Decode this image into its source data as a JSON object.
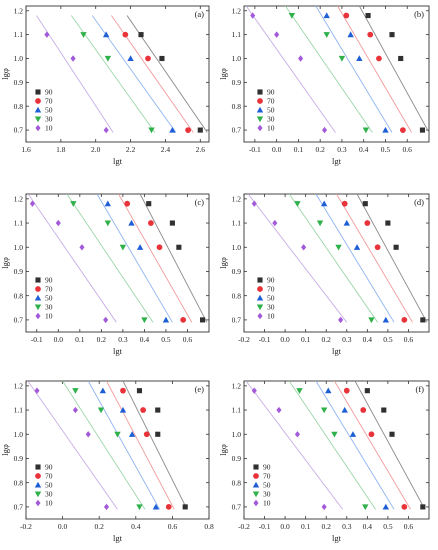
{
  "figure": {
    "colors": {
      "90": "#303030",
      "70": "#e8333a",
      "50": "#1f5fd6",
      "30": "#2eb04a",
      "10": "#a35ad8"
    },
    "line_colors": {
      "90": "#8a8a8a",
      "70": "#f29a9a",
      "50": "#8fb4f0",
      "30": "#9cd6a8",
      "10": "#c8aee6"
    }
  },
  "chart_data": [
    {
      "panel": "(a)",
      "type": "scatter",
      "xlabel": "lgt",
      "ylabel": "lgφ",
      "xlim": [
        1.6,
        2.65
      ],
      "ylim": [
        0.65,
        1.22
      ],
      "xticks": [
        1.6,
        1.8,
        2.0,
        2.2,
        2.4,
        2.6
      ],
      "xticklabels": [
        "1.6",
        "1.8",
        "2.0",
        "2.2",
        "2.4",
        "2.6"
      ],
      "yticks": [
        0.7,
        0.8,
        0.9,
        1.0,
        1.1,
        1.2
      ],
      "yticklabels": [
        "0.7",
        "0.8",
        "0.9",
        "1.0",
        "1.1",
        "1.2"
      ],
      "legend": "left",
      "series": [
        {
          "name": "90",
          "marker": "square",
          "x": [
            2.26,
            2.38,
            2.6
          ],
          "y": [
            1.1,
            1.0,
            0.7
          ],
          "fit": [
            [
              2.18,
              1.18
            ],
            [
              2.64,
              0.69
            ]
          ]
        },
        {
          "name": "70",
          "marker": "circle",
          "x": [
            2.17,
            2.3,
            2.53
          ],
          "y": [
            1.1,
            1.0,
            0.7
          ],
          "fit": [
            [
              2.09,
              1.18
            ],
            [
              2.56,
              0.69
            ]
          ]
        },
        {
          "name": "50",
          "marker": "triangle",
          "x": [
            2.06,
            2.2,
            2.44
          ],
          "y": [
            1.1,
            1.0,
            0.7
          ],
          "fit": [
            [
              1.98,
              1.18
            ],
            [
              2.46,
              0.69
            ]
          ]
        },
        {
          "name": "30",
          "marker": "triangle-down",
          "x": [
            1.93,
            2.07,
            2.32
          ],
          "y": [
            1.1,
            1.0,
            0.7
          ],
          "fit": [
            [
              1.86,
              1.18
            ],
            [
              2.34,
              0.69
            ]
          ]
        },
        {
          "name": "10",
          "marker": "diamond",
          "x": [
            1.72,
            1.87,
            2.06
          ],
          "y": [
            1.1,
            1.0,
            0.7
          ],
          "fit": [
            [
              1.66,
              1.18
            ],
            [
              2.1,
              0.69
            ]
          ]
        }
      ]
    },
    {
      "panel": "(b)",
      "type": "scatter",
      "xlabel": "lgt",
      "ylabel": "lgφ",
      "xlim": [
        -0.15,
        0.7
      ],
      "ylim": [
        0.65,
        1.22
      ],
      "xticks": [
        -0.1,
        0.0,
        0.1,
        0.2,
        0.3,
        0.4,
        0.5,
        0.6
      ],
      "xticklabels": [
        "-0.1",
        "0.0",
        "0.1",
        "0.2",
        "0.3",
        "0.4",
        "0.5",
        "0.6"
      ],
      "yticks": [
        0.7,
        0.8,
        0.9,
        1.0,
        1.1,
        1.2
      ],
      "yticklabels": [
        "0.7",
        "0.8",
        "0.9",
        "1.0",
        "1.1",
        "1.2"
      ],
      "legend": "right",
      "series": [
        {
          "name": "90",
          "marker": "square",
          "x": [
            0.42,
            0.53,
            0.57,
            0.67
          ],
          "y": [
            1.18,
            1.1,
            1.0,
            0.7
          ],
          "fit": [
            [
              0.38,
              1.22
            ],
            [
              0.7,
              0.69
            ]
          ]
        },
        {
          "name": "70",
          "marker": "circle",
          "x": [
            0.32,
            0.43,
            0.47,
            0.58
          ],
          "y": [
            1.18,
            1.1,
            1.0,
            0.7
          ],
          "fit": [
            [
              0.28,
              1.22
            ],
            [
              0.62,
              0.69
            ]
          ]
        },
        {
          "name": "50",
          "marker": "triangle",
          "x": [
            0.23,
            0.34,
            0.38,
            0.5
          ],
          "y": [
            1.18,
            1.1,
            1.0,
            0.7
          ],
          "fit": [
            [
              0.18,
              1.22
            ],
            [
              0.53,
              0.69
            ]
          ]
        },
        {
          "name": "30",
          "marker": "triangle-down",
          "x": [
            0.07,
            0.23,
            0.3,
            0.41
          ],
          "y": [
            1.18,
            1.1,
            1.0,
            0.7
          ],
          "fit": [
            [
              0.04,
              1.22
            ],
            [
              0.44,
              0.69
            ]
          ]
        },
        {
          "name": "10",
          "marker": "diamond",
          "x": [
            -0.11,
            0.0,
            0.11,
            0.22
          ],
          "y": [
            1.18,
            1.1,
            1.0,
            0.7
          ],
          "fit": [
            [
              -0.14,
              1.22
            ],
            [
              0.27,
              0.69
            ]
          ]
        }
      ]
    },
    {
      "panel": "(c)",
      "type": "scatter",
      "xlabel": "lgt",
      "ylabel": "lgφ",
      "xlim": [
        -0.15,
        0.7
      ],
      "ylim": [
        0.65,
        1.22
      ],
      "xticks": [
        -0.1,
        0.0,
        0.1,
        0.2,
        0.3,
        0.4,
        0.5,
        0.6
      ],
      "xticklabels": [
        "-0.1",
        "0.0",
        "0.1",
        "0.2",
        "0.3",
        "0.4",
        "0.5",
        "0.6"
      ],
      "yticks": [
        0.7,
        0.8,
        0.9,
        1.0,
        1.1,
        1.2
      ],
      "yticklabels": [
        "0.7",
        "0.8",
        "0.9",
        "1.0",
        "1.1",
        "1.2"
      ],
      "legend": "left",
      "series": [
        {
          "name": "90",
          "marker": "square",
          "x": [
            0.42,
            0.53,
            0.56,
            0.67
          ],
          "y": [
            1.18,
            1.1,
            1.0,
            0.7
          ],
          "fit": [
            [
              0.38,
              1.22
            ],
            [
              0.69,
              0.69
            ]
          ]
        },
        {
          "name": "70",
          "marker": "circle",
          "x": [
            0.32,
            0.43,
            0.47,
            0.58
          ],
          "y": [
            1.18,
            1.1,
            1.0,
            0.7
          ],
          "fit": [
            [
              0.28,
              1.22
            ],
            [
              0.62,
              0.69
            ]
          ]
        },
        {
          "name": "50",
          "marker": "triangle",
          "x": [
            0.23,
            0.34,
            0.38,
            0.5
          ],
          "y": [
            1.18,
            1.1,
            1.0,
            0.7
          ],
          "fit": [
            [
              0.18,
              1.22
            ],
            [
              0.53,
              0.69
            ]
          ]
        },
        {
          "name": "30",
          "marker": "triangle-down",
          "x": [
            0.07,
            0.23,
            0.3,
            0.4
          ],
          "y": [
            1.18,
            1.1,
            1.0,
            0.7
          ],
          "fit": [
            [
              0.04,
              1.22
            ],
            [
              0.44,
              0.69
            ]
          ]
        },
        {
          "name": "10",
          "marker": "diamond",
          "x": [
            -0.12,
            0.0,
            0.11,
            0.22
          ],
          "y": [
            1.18,
            1.1,
            1.0,
            0.7
          ],
          "fit": [
            [
              -0.14,
              1.22
            ],
            [
              0.27,
              0.69
            ]
          ]
        }
      ]
    },
    {
      "panel": "(d)",
      "type": "scatter",
      "xlabel": "lgt",
      "ylabel": "lgφ",
      "xlim": [
        -0.2,
        0.7
      ],
      "ylim": [
        0.65,
        1.22
      ],
      "xticks": [
        -0.2,
        -0.1,
        0.0,
        0.1,
        0.2,
        0.3,
        0.4,
        0.5,
        0.6
      ],
      "xticklabels": [
        "-0.2",
        "-0.1",
        "0.0",
        "0.1",
        "0.2",
        "0.3",
        "0.4",
        "0.5",
        "0.6"
      ],
      "yticks": [
        0.7,
        0.8,
        0.9,
        1.0,
        1.1,
        1.2
      ],
      "yticklabels": [
        "0.7",
        "0.8",
        "0.9",
        "1.0",
        "1.1",
        "1.2"
      ],
      "legend": "right",
      "series": [
        {
          "name": "90",
          "marker": "square",
          "x": [
            0.39,
            0.5,
            0.54,
            0.67
          ],
          "y": [
            1.18,
            1.1,
            1.0,
            0.7
          ],
          "fit": [
            [
              0.35,
              1.22
            ],
            [
              0.69,
              0.69
            ]
          ]
        },
        {
          "name": "70",
          "marker": "circle",
          "x": [
            0.29,
            0.4,
            0.45,
            0.58
          ],
          "y": [
            1.18,
            1.1,
            1.0,
            0.7
          ],
          "fit": [
            [
              0.25,
              1.22
            ],
            [
              0.62,
              0.69
            ]
          ]
        },
        {
          "name": "50",
          "marker": "triangle",
          "x": [
            0.19,
            0.3,
            0.35,
            0.49
          ],
          "y": [
            1.18,
            1.1,
            1.0,
            0.7
          ],
          "fit": [
            [
              0.15,
              1.22
            ],
            [
              0.53,
              0.69
            ]
          ]
        },
        {
          "name": "30",
          "marker": "triangle-down",
          "x": [
            0.06,
            0.17,
            0.26,
            0.42
          ],
          "y": [
            1.18,
            1.1,
            1.0,
            0.7
          ],
          "fit": [
            [
              0.02,
              1.22
            ],
            [
              0.45,
              0.69
            ]
          ]
        },
        {
          "name": "10",
          "marker": "diamond",
          "x": [
            -0.15,
            -0.05,
            0.09,
            0.27
          ],
          "y": [
            1.18,
            1.1,
            1.0,
            0.7
          ],
          "fit": [
            [
              -0.18,
              1.22
            ],
            [
              0.3,
              0.69
            ]
          ]
        }
      ]
    },
    {
      "panel": "(e)",
      "type": "scatter",
      "xlabel": "lgt",
      "ylabel": "lgφ",
      "xlim": [
        -0.2,
        0.8
      ],
      "ylim": [
        0.65,
        1.22
      ],
      "xticks": [
        -0.2,
        0.0,
        0.2,
        0.4,
        0.6,
        0.8
      ],
      "xticklabels": [
        "-0.2",
        "0.0",
        "0.2",
        "0.4",
        "0.6",
        "0.8"
      ],
      "yticks": [
        0.7,
        0.8,
        0.9,
        1.0,
        1.1,
        1.2
      ],
      "yticklabels": [
        "0.7",
        "0.8",
        "0.9",
        "1.0",
        "1.1",
        "1.2"
      ],
      "legend": "left",
      "series": [
        {
          "name": "90",
          "marker": "square",
          "x": [
            0.42,
            0.52,
            0.52,
            0.67
          ],
          "y": [
            1.18,
            1.1,
            1.0,
            0.7
          ],
          "fit": [
            [
              0.33,
              1.22
            ],
            [
              0.68,
              0.69
            ]
          ]
        },
        {
          "name": "70",
          "marker": "circle",
          "x": [
            0.33,
            0.44,
            0.46,
            0.58
          ],
          "y": [
            1.18,
            1.1,
            1.0,
            0.7
          ],
          "fit": [
            [
              0.24,
              1.22
            ],
            [
              0.61,
              0.69
            ]
          ]
        },
        {
          "name": "50",
          "marker": "triangle",
          "x": [
            0.22,
            0.33,
            0.38,
            0.51
          ],
          "y": [
            1.18,
            1.1,
            1.0,
            0.7
          ],
          "fit": [
            [
              0.14,
              1.22
            ],
            [
              0.53,
              0.69
            ]
          ]
        },
        {
          "name": "30",
          "marker": "triangle-down",
          "x": [
            0.07,
            0.21,
            0.3,
            0.42
          ],
          "y": [
            1.18,
            1.1,
            1.0,
            0.7
          ],
          "fit": [
            [
              0.0,
              1.22
            ],
            [
              0.45,
              0.69
            ]
          ]
        },
        {
          "name": "10",
          "marker": "diamond",
          "x": [
            -0.14,
            0.07,
            0.14,
            0.24
          ],
          "y": [
            1.18,
            1.1,
            1.0,
            0.7
          ],
          "fit": [
            [
              -0.19,
              1.22
            ],
            [
              0.3,
              0.69
            ]
          ]
        }
      ]
    },
    {
      "panel": "(f)",
      "type": "scatter",
      "xlabel": "lgt",
      "ylabel": "lgφ",
      "xlim": [
        -0.2,
        0.7
      ],
      "ylim": [
        0.65,
        1.22
      ],
      "xticks": [
        -0.2,
        -0.1,
        0.0,
        0.1,
        0.2,
        0.3,
        0.4,
        0.5,
        0.6
      ],
      "xticklabels": [
        "-0.2",
        "-0.1",
        "0.0",
        "0.1",
        "0.2",
        "0.3",
        "0.4",
        "0.5",
        "0.6"
      ],
      "yticks": [
        0.7,
        0.8,
        0.9,
        1.0,
        1.1,
        1.2
      ],
      "yticklabels": [
        "0.7",
        "0.8",
        "0.9",
        "1.0",
        "1.1",
        "1.2"
      ],
      "legend": "left",
      "series": [
        {
          "name": "90",
          "marker": "square",
          "x": [
            0.4,
            0.48,
            0.52,
            0.67
          ],
          "y": [
            1.18,
            1.1,
            1.0,
            0.7
          ],
          "fit": [
            [
              0.34,
              1.22
            ],
            [
              0.68,
              0.69
            ]
          ]
        },
        {
          "name": "70",
          "marker": "circle",
          "x": [
            0.3,
            0.38,
            0.42,
            0.58
          ],
          "y": [
            1.18,
            1.1,
            1.0,
            0.7
          ],
          "fit": [
            [
              0.24,
              1.22
            ],
            [
              0.61,
              0.69
            ]
          ]
        },
        {
          "name": "50",
          "marker": "triangle",
          "x": [
            0.21,
            0.29,
            0.33,
            0.49
          ],
          "y": [
            1.18,
            1.1,
            1.0,
            0.7
          ],
          "fit": [
            [
              0.15,
              1.22
            ],
            [
              0.53,
              0.69
            ]
          ]
        },
        {
          "name": "30",
          "marker": "triangle-down",
          "x": [
            0.07,
            0.19,
            0.24,
            0.39
          ],
          "y": [
            1.18,
            1.1,
            1.0,
            0.7
          ],
          "fit": [
            [
              0.02,
              1.22
            ],
            [
              0.44,
              0.69
            ]
          ]
        },
        {
          "name": "10",
          "marker": "diamond",
          "x": [
            -0.15,
            -0.03,
            0.06,
            0.19
          ],
          "y": [
            1.18,
            1.1,
            1.0,
            0.7
          ],
          "fit": [
            [
              -0.19,
              1.22
            ],
            [
              0.28,
              0.69
            ]
          ]
        }
      ]
    }
  ]
}
